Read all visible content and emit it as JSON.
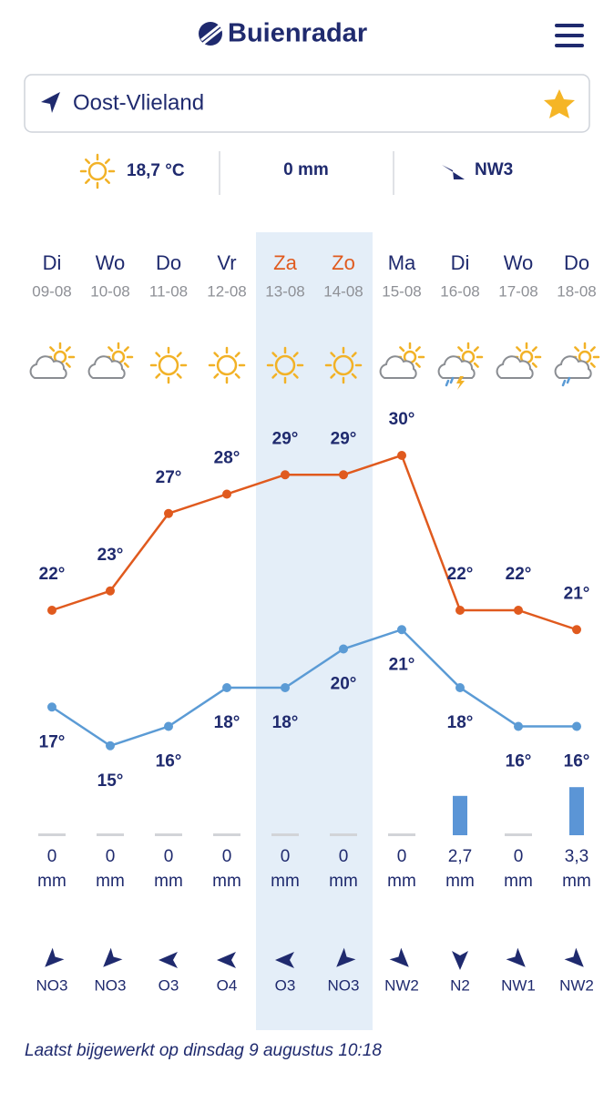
{
  "header": {
    "logo": "Buienradar"
  },
  "location": {
    "name": "Oost-Vlieland"
  },
  "current": {
    "temperature": "18,7 °C",
    "rain": "0 mm",
    "wind": "NW3"
  },
  "forecast": {
    "days": [
      "Di",
      "Wo",
      "Do",
      "Vr",
      "Za",
      "Zo",
      "Ma",
      "Di",
      "Wo",
      "Do"
    ],
    "dates": [
      "09-08",
      "10-08",
      "11-08",
      "12-08",
      "13-08",
      "14-08",
      "15-08",
      "16-08",
      "17-08",
      "18-08"
    ],
    "max": [
      22,
      23,
      27,
      28,
      29,
      29,
      30,
      22,
      22,
      21
    ],
    "max_labels": [
      "22°",
      "23°",
      "27°",
      "28°",
      "29°",
      "29°",
      "30°",
      "22°",
      "22°",
      "21°"
    ],
    "min": [
      17,
      15,
      16,
      18,
      18,
      20,
      21,
      18,
      16,
      16
    ],
    "min_labels": [
      "17°",
      "15°",
      "16°",
      "18°",
      "18°",
      "20°",
      "21°",
      "18°",
      "16°",
      "16°"
    ],
    "rain": [
      0,
      0,
      0,
      0,
      0,
      0,
      0,
      2.7,
      0,
      3.3
    ],
    "rain_labels": [
      "0",
      "0",
      "0",
      "0",
      "0",
      "0",
      "0",
      "2,7",
      "0",
      "3,3"
    ],
    "rain_unit": "mm",
    "wind": [
      "NO3",
      "NO3",
      "O3",
      "O4",
      "O3",
      "NO3",
      "NW2",
      "N2",
      "NW1",
      "NW2"
    ]
  },
  "footer": {
    "updated": "Laatst bijgewerkt op dinsdag 9 augustus 10:18"
  }
}
